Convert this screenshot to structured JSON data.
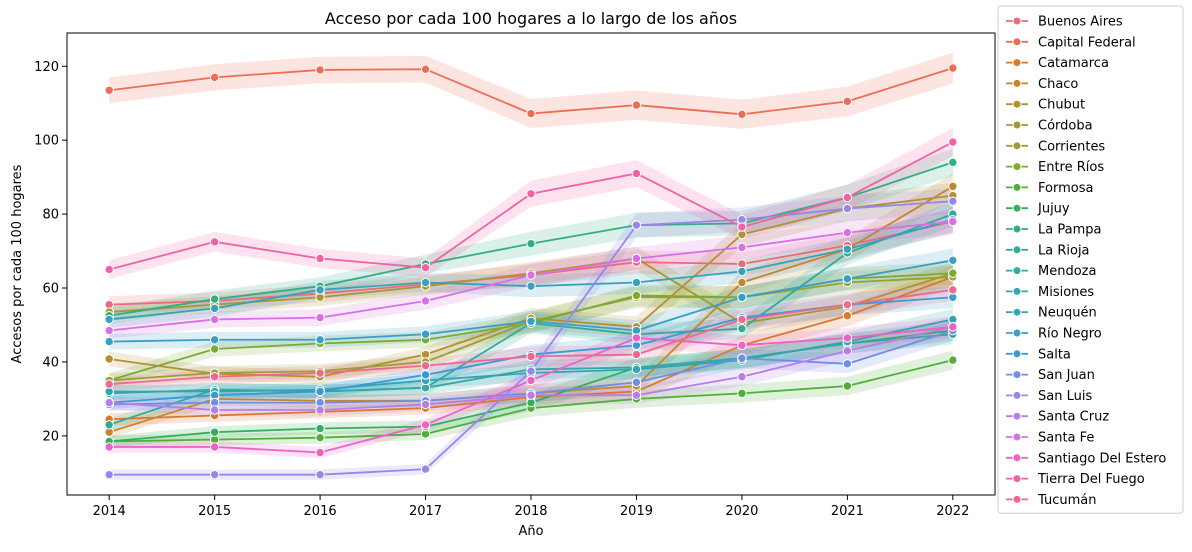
{
  "chart_data": {
    "type": "line",
    "title": "Acceso por cada 100 hogares a lo largo de los años",
    "xlabel": "Año",
    "ylabel": "Accesos por cada 100 hogares",
    "x": [
      2014,
      2015,
      2016,
      2017,
      2018,
      2019,
      2020,
      2021,
      2022
    ],
    "xlim": [
      2013.6,
      2022.4
    ],
    "ylim": [
      4,
      129
    ],
    "yticks": [
      20,
      40,
      60,
      80,
      100,
      120
    ],
    "grid": false,
    "legend_position": "right",
    "series": [
      {
        "name": "Buenos Aires",
        "color": "#f0697a",
        "values": [
          55.5,
          56.5,
          58.5,
          61.0,
          63.5,
          67.0,
          66.5,
          71.5,
          78.0
        ]
      },
      {
        "name": "Capital Federal",
        "color": "#ee6c53",
        "values": [
          113.5,
          117.0,
          119.0,
          119.2,
          107.2,
          109.5,
          107.0,
          110.5,
          119.5
        ]
      },
      {
        "name": "Catamarca",
        "color": "#d9792e",
        "values": [
          24.5,
          25.5,
          26.5,
          27.5,
          30.5,
          32.0,
          44.5,
          52.5,
          63.0
        ]
      },
      {
        "name": "Chaco",
        "color": "#c68530",
        "values": [
          21.0,
          30.0,
          29.5,
          29.5,
          31.5,
          33.5,
          61.5,
          70.5,
          87.5
        ]
      },
      {
        "name": "Chubut",
        "color": "#b49032",
        "values": [
          40.8,
          36.8,
          36.0,
          42.0,
          51.8,
          49.5,
          74.5,
          81.5,
          85.0
        ]
      },
      {
        "name": "Córdoba",
        "color": "#a89833",
        "values": [
          53.5,
          55.5,
          57.5,
          60.5,
          64.0,
          68.0,
          50.5,
          55.0,
          64.0
        ]
      },
      {
        "name": "Corrientes",
        "color": "#99a035",
        "values": [
          35.0,
          37.0,
          37.5,
          40.0,
          51.0,
          57.5,
          57.5,
          61.5,
          63.0
        ]
      },
      {
        "name": "Entre Ríos",
        "color": "#7daa35",
        "values": [
          35.0,
          43.5,
          45.0,
          46.0,
          50.5,
          58.0,
          57.5,
          62.5,
          64.0
        ]
      },
      {
        "name": "Formosa",
        "color": "#4faf3a",
        "values": [
          18.5,
          19.0,
          19.5,
          20.5,
          27.5,
          30.0,
          31.5,
          33.5,
          40.5
        ]
      },
      {
        "name": "Jujuy",
        "color": "#33b05a",
        "values": [
          18.5,
          21.0,
          22.0,
          22.5,
          29.0,
          38.5,
          41.0,
          45.0,
          48.5
        ]
      },
      {
        "name": "La Pampa",
        "color": "#33ae81",
        "values": [
          52.5,
          57.0,
          60.5,
          66.5,
          72.0,
          77.0,
          77.5,
          84.5,
          94.0
        ]
      },
      {
        "name": "La Rioja",
        "color": "#34aa96",
        "values": [
          23.0,
          32.5,
          32.0,
          33.0,
          50.5,
          47.5,
          49.0,
          69.5,
          80.0
        ]
      },
      {
        "name": "Mendoza",
        "color": "#35a7a4",
        "values": [
          31.5,
          32.5,
          32.0,
          33.0,
          38.0,
          38.5,
          41.0,
          45.0,
          47.5
        ]
      },
      {
        "name": "Misiones",
        "color": "#36a4b0",
        "values": [
          32.0,
          32.0,
          32.5,
          35.0,
          37.0,
          38.0,
          40.5,
          45.5,
          51.5
        ]
      },
      {
        "name": "Neuquén",
        "color": "#37a2bc",
        "values": [
          51.5,
          54.5,
          59.5,
          61.5,
          60.5,
          61.5,
          64.5,
          70.5,
          78.5
        ]
      },
      {
        "name": "Río Negro",
        "color": "#389fc9",
        "values": [
          45.5,
          46.0,
          46.0,
          47.5,
          51.0,
          48.5,
          57.5,
          62.5,
          67.5
        ]
      },
      {
        "name": "Salta",
        "color": "#3a9ad8",
        "values": [
          29.0,
          31.0,
          32.0,
          36.5,
          42.0,
          44.5,
          52.0,
          55.5,
          57.5
        ]
      },
      {
        "name": "San Juan",
        "color": "#6e8fe6",
        "values": [
          28.5,
          29.0,
          29.0,
          29.5,
          31.5,
          34.5,
          41.0,
          39.5,
          48.5
        ]
      },
      {
        "name": "San Luis",
        "color": "#9887ea",
        "values": [
          9.5,
          9.5,
          9.5,
          11.0,
          37.5,
          77.0,
          78.5,
          81.5,
          83.5
        ]
      },
      {
        "name": "Santa Cruz",
        "color": "#b77de9",
        "values": [
          29.0,
          27.0,
          27.0,
          28.5,
          31.0,
          31.0,
          36.0,
          43.0,
          49.5
        ]
      },
      {
        "name": "Santa Fe",
        "color": "#d96fe5",
        "values": [
          48.5,
          51.5,
          52.0,
          56.5,
          63.5,
          68.0,
          71.0,
          75.0,
          78.0
        ]
      },
      {
        "name": "Santiago Del Estero",
        "color": "#ec62c6",
        "values": [
          17.0,
          17.0,
          15.5,
          23.0,
          35.0,
          46.5,
          44.5,
          46.5,
          49.5
        ]
      },
      {
        "name": "Tierra Del Fuego",
        "color": "#ef63a6",
        "values": [
          65.0,
          72.5,
          68.0,
          65.5,
          85.5,
          91.0,
          76.5,
          84.5,
          99.5
        ]
      },
      {
        "name": "Tucumán",
        "color": "#f06791",
        "values": [
          34.0,
          36.0,
          37.0,
          39.0,
          41.5,
          42.0,
          51.5,
          55.5,
          59.5
        ]
      }
    ]
  }
}
